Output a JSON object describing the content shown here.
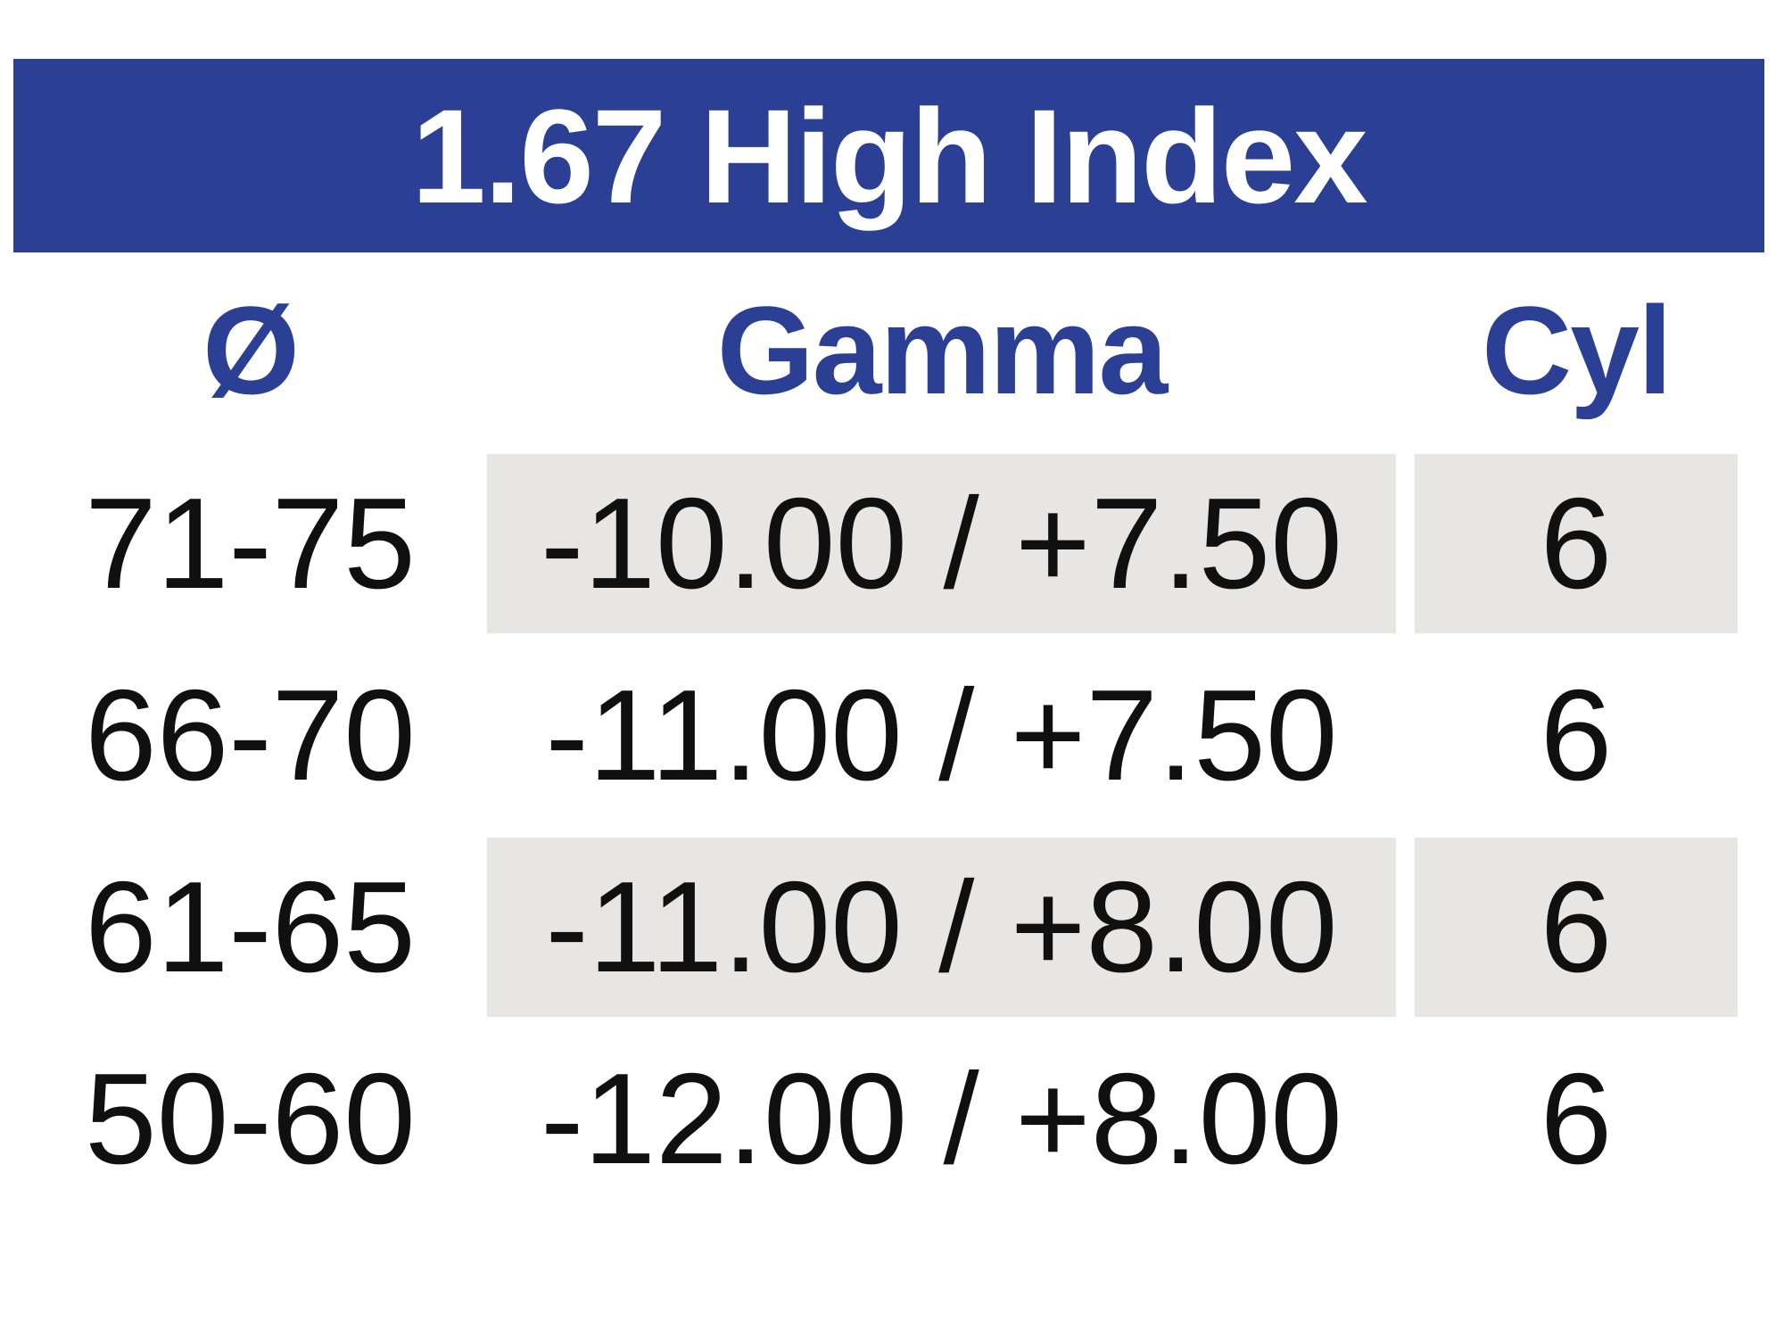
{
  "document": {
    "title": "1.67 High Index",
    "columns": [
      {
        "id": "diameter",
        "label": "Ø"
      },
      {
        "id": "gamma",
        "label": "Gamma"
      },
      {
        "id": "cyl",
        "label": "Cyl"
      }
    ],
    "rows": [
      {
        "diameter": "71-75",
        "gamma": "-10.00 / +7.50",
        "cyl": "6",
        "shaded": true
      },
      {
        "diameter": "66-70",
        "gamma": "-11.00 / +7.50",
        "cyl": "6",
        "shaded": false
      },
      {
        "diameter": "61-65",
        "gamma": "-11.00 / +8.00",
        "cyl": "6",
        "shaded": true
      },
      {
        "diameter": "50-60",
        "gamma": "-12.00 / +8.00",
        "cyl": "6",
        "shaded": false
      }
    ],
    "colors": {
      "title_bar_bg": "#2B3F94",
      "title_text": "#FFFFFF",
      "header_text": "#2B3F94",
      "data_text": "#101010",
      "row_shade": "#E7E6E4",
      "page_bg": "#FFFFFF"
    }
  }
}
